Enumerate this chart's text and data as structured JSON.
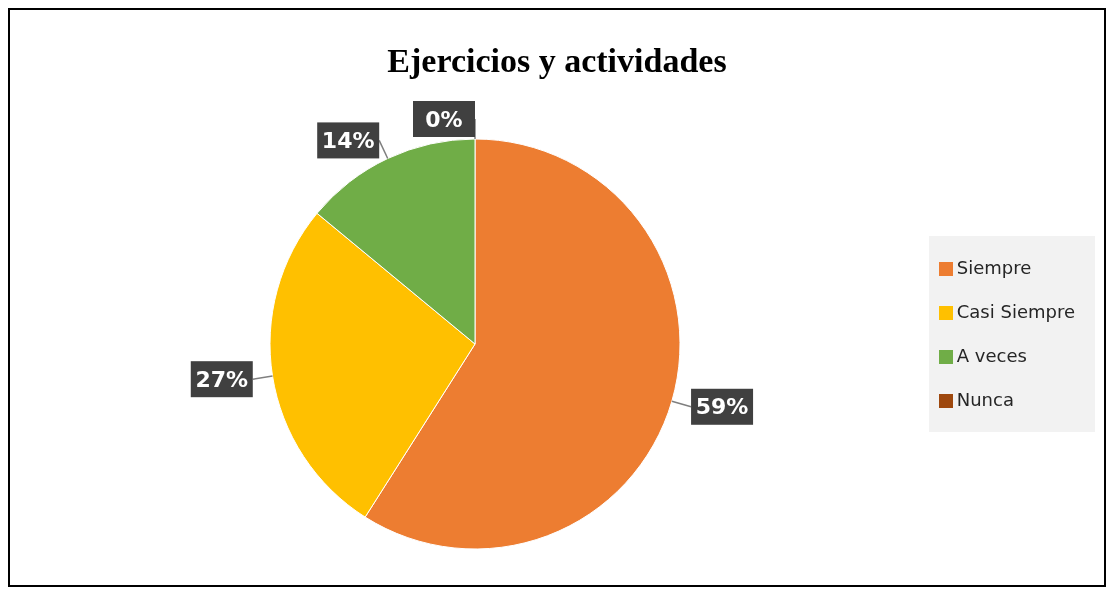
{
  "chart_data": {
    "type": "pie",
    "title": "Ejercicios y actividades",
    "categories": [
      "Siempre",
      "Casi Siempre",
      "A veces",
      "Nunca"
    ],
    "values": [
      59,
      27,
      14,
      0
    ],
    "colors": [
      "#ed7d31",
      "#ffc000",
      "#70ad47",
      "#9e480e"
    ],
    "value_labels": [
      "59%",
      "27%",
      "14%",
      "0%"
    ],
    "legend": "right"
  }
}
